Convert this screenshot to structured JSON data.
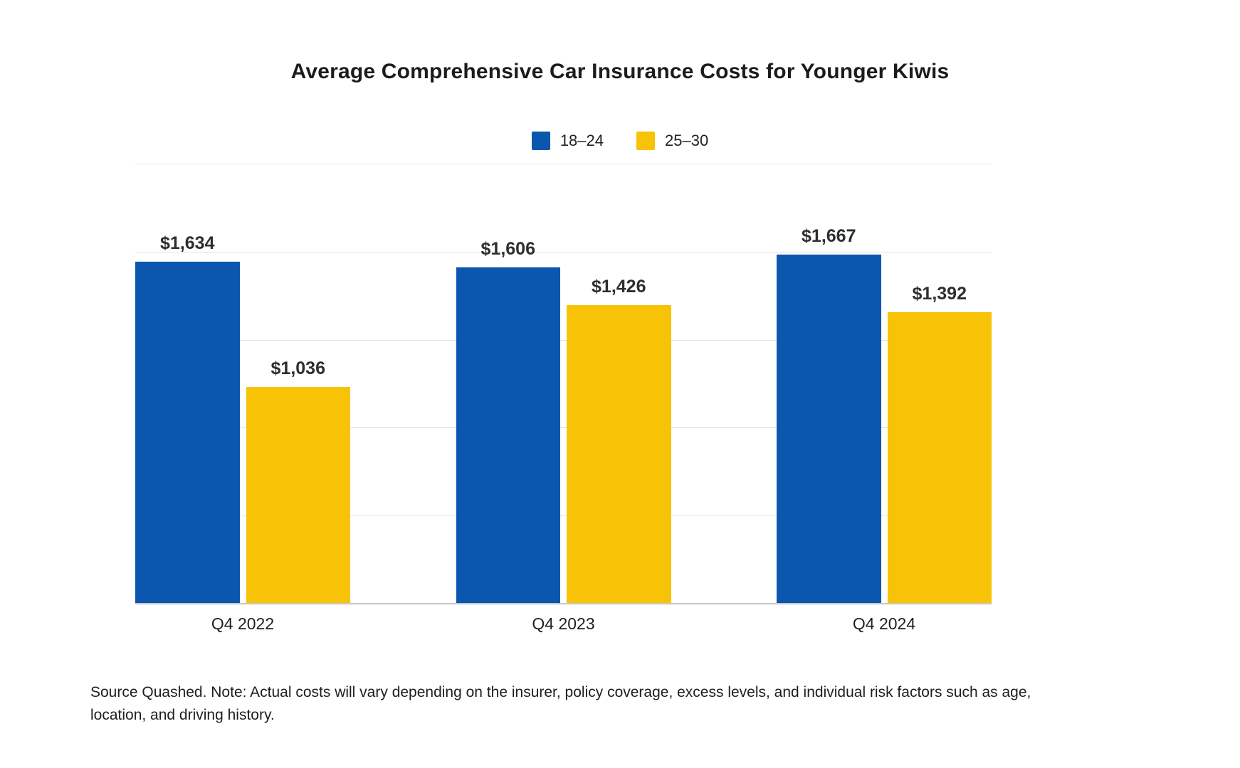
{
  "title": "Average Comprehensive Car Insurance Costs for Younger Kiwis",
  "chart_data": {
    "type": "bar",
    "title": "Average Comprehensive Car Insurance Costs for Younger Kiwis",
    "categories": [
      "Q4 2022",
      "Q4 2023",
      "Q4 2024"
    ],
    "series": [
      {
        "name": "18–24",
        "color": "#0B56AF",
        "values": [
          1634,
          1606,
          1667
        ],
        "labels": [
          "$1,634",
          "$1,606",
          "$1,667"
        ]
      },
      {
        "name": "25–30",
        "color": "#F8C306",
        "values": [
          1036,
          1426,
          1392
        ],
        "labels": [
          "$1,036",
          "$1,426",
          "$1,392"
        ]
      }
    ],
    "ylim": [
      0,
      2100
    ],
    "grid": true,
    "gridline_count": 4,
    "legend_position": "top-center",
    "value_labels": "above-bars",
    "background": "#ffffff"
  },
  "footer": {
    "note": "Source Quashed. Note: Actual costs will vary depending on the insurer, policy coverage, excess levels, and individual risk factors such as age, location, and driving history."
  }
}
